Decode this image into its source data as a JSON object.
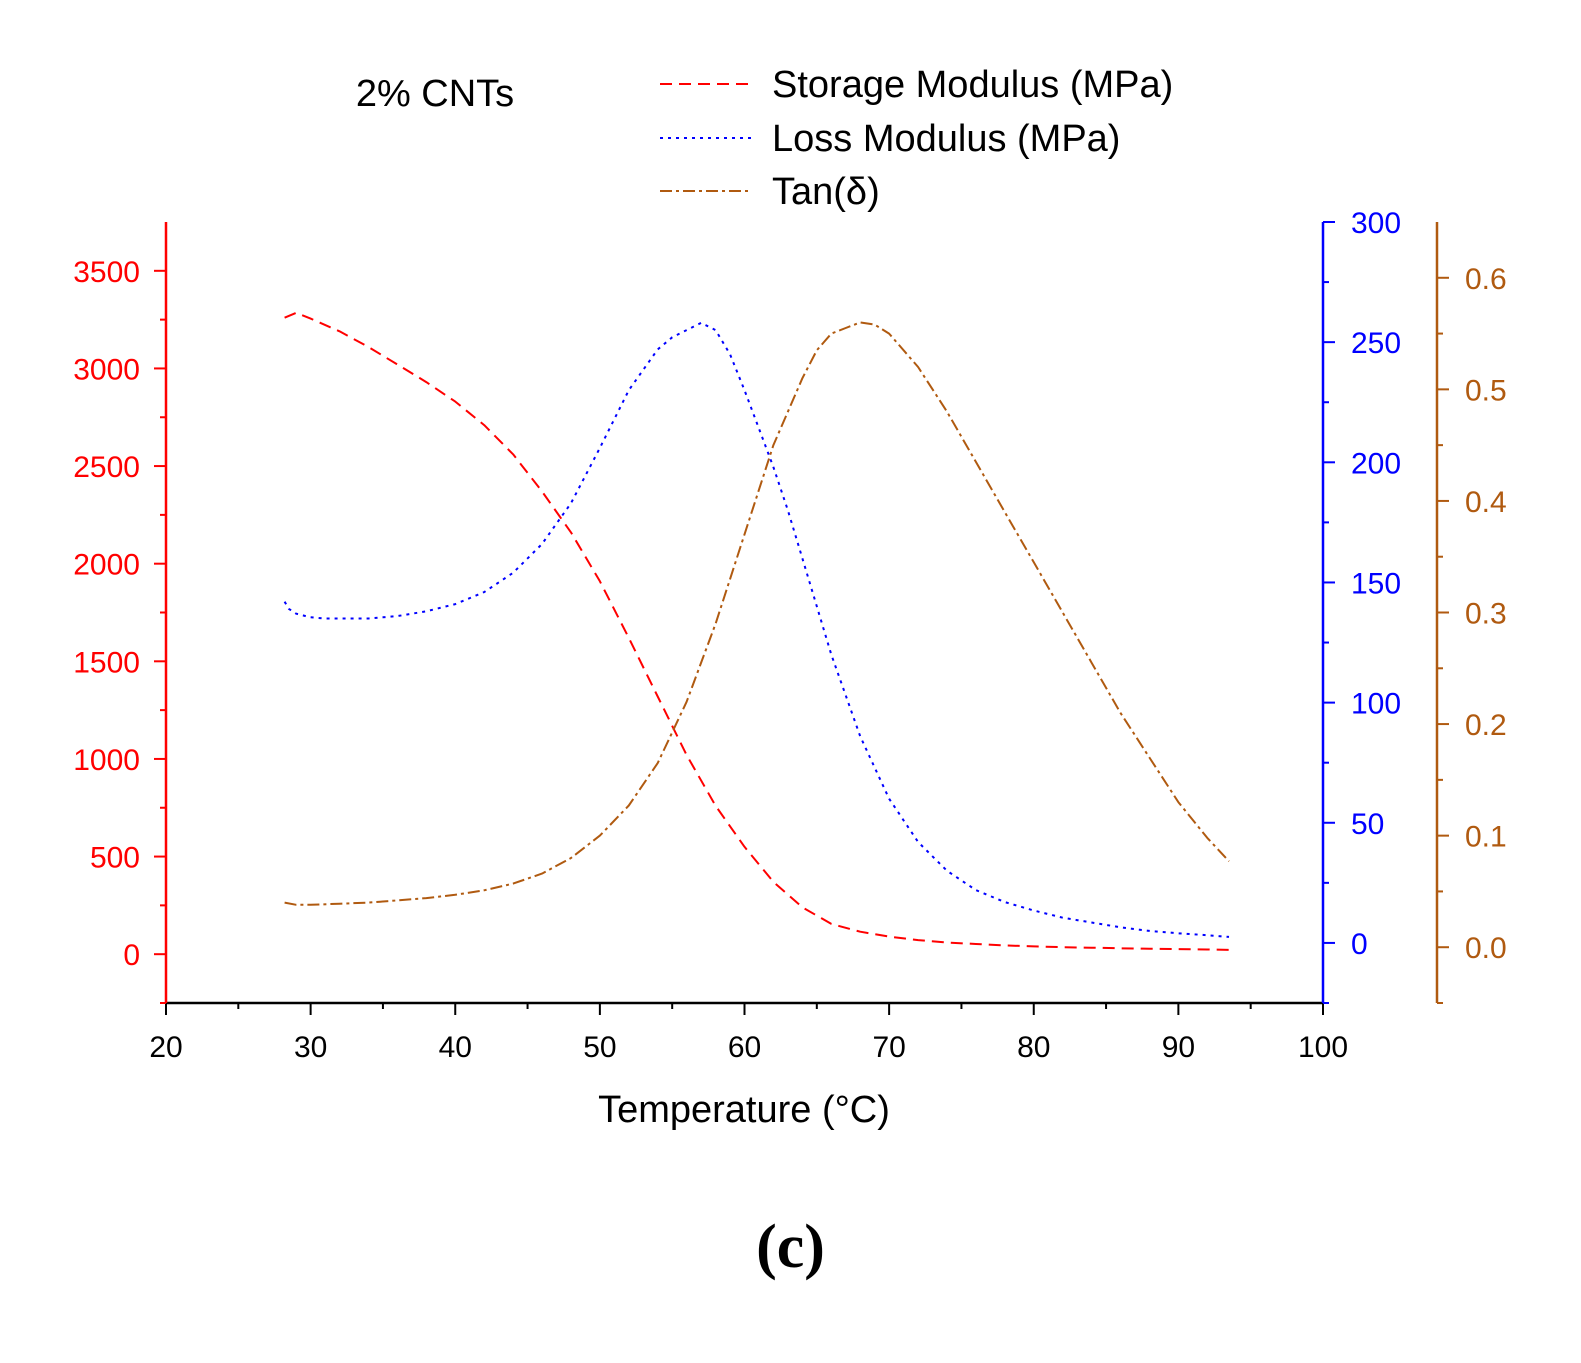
{
  "chart_data": {
    "type": "line",
    "title": "2% CNTs",
    "panel_label": "(c)",
    "xlabel": "Temperature (°C)",
    "xlim": [
      20,
      100
    ],
    "xticks": [
      20,
      30,
      40,
      50,
      60,
      70,
      80,
      90,
      100
    ],
    "colors": {
      "storage": "#ff0000",
      "loss": "#0000ff",
      "tan": "#b05a10",
      "axis": "#000000"
    },
    "axes": {
      "left": {
        "label": "",
        "ylim": [
          -250,
          3750
        ],
        "ticks": [
          0,
          500,
          1000,
          1500,
          2000,
          2500,
          3000,
          3500
        ]
      },
      "right1": {
        "label": "",
        "ylim": [
          -25,
          300
        ],
        "ticks": [
          0,
          50,
          100,
          150,
          200,
          250,
          300
        ]
      },
      "right2": {
        "label": "",
        "ylim": [
          -0.05,
          0.65
        ],
        "ticks": [
          "0.0",
          "0.1",
          "0.2",
          "0.3",
          "0.4",
          "0.5",
          "0.6"
        ]
      }
    },
    "legend": {
      "position": "top-center",
      "entries": [
        "Storage Modulus (MPa)",
        "Loss Modulus (MPa)",
        "Tan(δ)"
      ]
    },
    "series": [
      {
        "name": "Storage Modulus (MPa)",
        "axis": "left",
        "x": [
          28.2,
          29,
          30,
          32,
          34,
          36,
          38,
          40,
          42,
          44,
          46,
          48,
          50,
          52,
          54,
          56,
          58,
          60,
          62,
          64,
          66,
          68,
          70,
          72,
          74,
          76,
          78,
          80,
          82,
          84,
          86,
          88,
          90,
          92,
          93.5
        ],
        "values": [
          3260,
          3285,
          3255,
          3190,
          3110,
          3020,
          2930,
          2830,
          2710,
          2560,
          2370,
          2160,
          1910,
          1620,
          1320,
          1020,
          760,
          550,
          370,
          240,
          155,
          115,
          90,
          72,
          60,
          52,
          45,
          40,
          36,
          33,
          30,
          28,
          26,
          24,
          22
        ]
      },
      {
        "name": "Loss Modulus (MPa)",
        "axis": "right1",
        "x": [
          28.2,
          28.5,
          29,
          30,
          31,
          32,
          33,
          34,
          35,
          36,
          38,
          40,
          42,
          44,
          46,
          48,
          50,
          52,
          54,
          55,
          56,
          57,
          58,
          59,
          60,
          61,
          62,
          63,
          64,
          66,
          68,
          70,
          72,
          74,
          76,
          78,
          80,
          82,
          84,
          86,
          88,
          90,
          92,
          93.5
        ],
        "values": [
          142,
          139,
          137,
          135.5,
          135,
          135,
          135,
          135,
          135.5,
          136,
          138,
          141,
          146,
          154,
          166,
          183,
          206,
          230,
          247,
          252,
          255,
          258,
          255,
          245,
          230,
          214,
          198,
          180,
          160,
          120,
          86,
          60,
          42,
          30,
          22,
          17,
          13.5,
          10.5,
          8.5,
          6.5,
          5,
          4,
          3.2,
          2.5
        ]
      },
      {
        "name": "Tan(δ)",
        "axis": "right2",
        "x": [
          28.2,
          29,
          30,
          32,
          34,
          36,
          38,
          40,
          42,
          44,
          46,
          48,
          50,
          52,
          54,
          56,
          58,
          60,
          62,
          63,
          64,
          65,
          66,
          67,
          68,
          69,
          70,
          72,
          74,
          76,
          78,
          80,
          82,
          84,
          86,
          88,
          90,
          92,
          93.5
        ],
        "values": [
          0.04,
          0.038,
          0.038,
          0.039,
          0.04,
          0.042,
          0.044,
          0.047,
          0.051,
          0.057,
          0.066,
          0.08,
          0.1,
          0.127,
          0.165,
          0.22,
          0.29,
          0.37,
          0.45,
          0.48,
          0.51,
          0.535,
          0.55,
          0.555,
          0.56,
          0.558,
          0.55,
          0.52,
          0.48,
          0.435,
          0.39,
          0.345,
          0.3,
          0.255,
          0.21,
          0.17,
          0.13,
          0.098,
          0.077
        ]
      }
    ]
  }
}
